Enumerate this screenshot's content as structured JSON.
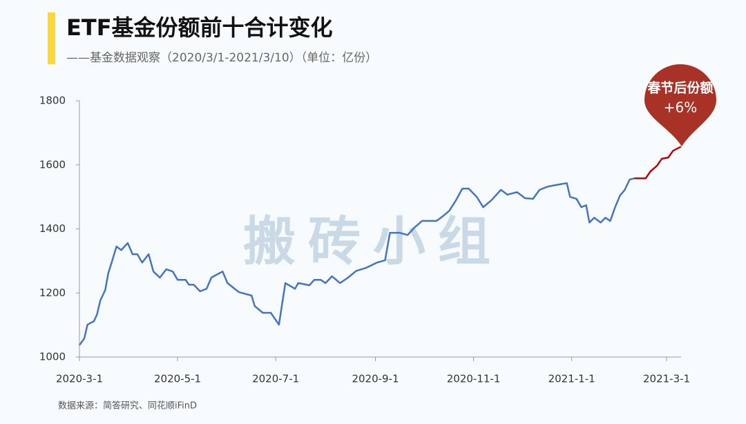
{
  "chart_data": {
    "type": "line",
    "title": "ETF基金份额前十合计变化",
    "subtitle": "——基金数据观察（2020/3/1-2021/3/10）（单位：亿份）",
    "source": "数据来源：简答研究、同花顺iFinD",
    "watermark": "搬砖小组",
    "annotations": [
      "春节后份额",
      "+6%"
    ],
    "xlim": [
      "2020-3-1",
      "2021-3-10"
    ],
    "xticks": [
      "2020-3-1",
      "2020-5-1",
      "2020-7-1",
      "2020-9-1",
      "2020-11-1",
      "2021-1-1",
      "2021-3-1"
    ],
    "ylim": [
      1000,
      1800
    ],
    "yticks": [
      1000,
      1200,
      1400,
      1600,
      1800
    ],
    "series": [
      {
        "color": "#4472c4",
        "x": [
          "2020-3-1",
          "2020-3-4",
          "2020-3-6",
          "2020-3-10",
          "2020-3-12",
          "2020-3-14",
          "2020-3-17",
          "2020-3-19",
          "2020-3-21",
          "2020-3-24",
          "2020-3-27",
          "2020-3-31",
          "2020-4-3",
          "2020-4-6",
          "2020-4-9",
          "2020-4-13",
          "2020-4-16",
          "2020-4-20",
          "2020-4-24",
          "2020-4-28",
          "2020-5-1",
          "2020-5-6",
          "2020-5-8",
          "2020-5-11",
          "2020-5-15",
          "2020-5-19",
          "2020-5-22",
          "2020-5-26",
          "2020-5-29",
          "2020-6-1",
          "2020-6-8",
          "2020-6-16",
          "2020-6-18",
          "2020-6-23",
          "2020-6-28",
          "2020-7-3",
          "2020-7-7",
          "2020-7-13",
          "2020-7-15",
          "2020-7-22",
          "2020-7-25",
          "2020-7-29",
          "2020-8-1",
          "2020-8-5",
          "2020-8-10",
          "2020-8-15",
          "2020-8-20",
          "2020-8-26",
          "2020-9-2",
          "2020-9-7",
          "2020-9-10",
          "2020-9-16",
          "2020-9-21",
          "2020-9-25",
          "2020-9-30",
          "2020-10-9",
          "2020-10-13",
          "2020-10-17",
          "2020-10-21",
          "2020-10-25",
          "2020-10-29",
          "2020-11-3",
          "2020-11-7",
          "2020-11-12",
          "2020-11-18",
          "2020-11-22",
          "2020-11-28",
          "2020-12-3",
          "2020-12-8",
          "2020-12-12",
          "2020-12-17",
          "2020-12-22",
          "2020-12-29",
          "2020-12-31",
          "2021-1-4",
          "2021-1-7",
          "2021-1-10",
          "2021-1-12",
          "2021-1-15",
          "2021-1-19",
          "2021-1-22",
          "2021-1-25",
          "2021-1-28",
          "2021-1-31",
          "2021-2-3",
          "2021-2-6",
          "2021-2-9"
        ],
        "values": [
          1037,
          1058,
          1101,
          1112,
          1134,
          1177,
          1209,
          1263,
          1295,
          1345,
          1334,
          1356,
          1321,
          1321,
          1295,
          1321,
          1267,
          1248,
          1274,
          1267,
          1241,
          1241,
          1226,
          1226,
          1205,
          1213,
          1248,
          1259,
          1267,
          1231,
          1203,
          1192,
          1159,
          1138,
          1138,
          1101,
          1231,
          1213,
          1231,
          1224,
          1241,
          1241,
          1231,
          1252,
          1231,
          1248,
          1269,
          1278,
          1295,
          1302,
          1388,
          1388,
          1381,
          1403,
          1425,
          1425,
          1440,
          1457,
          1489,
          1526,
          1526,
          1500,
          1468,
          1489,
          1522,
          1507,
          1515,
          1496,
          1494,
          1522,
          1532,
          1537,
          1543,
          1500,
          1494,
          1468,
          1474,
          1420,
          1435,
          1420,
          1435,
          1425,
          1468,
          1504,
          1522,
          1554,
          1558
        ]
      },
      {
        "color": "#c00000",
        "x": [
          "2021-2-9",
          "2021-2-16",
          "2021-2-19",
          "2021-2-23",
          "2021-2-26",
          "2021-3-2",
          "2021-3-5",
          "2021-3-10"
        ],
        "values": [
          1558,
          1558,
          1580,
          1597,
          1619,
          1623,
          1644,
          1657
        ]
      }
    ]
  }
}
